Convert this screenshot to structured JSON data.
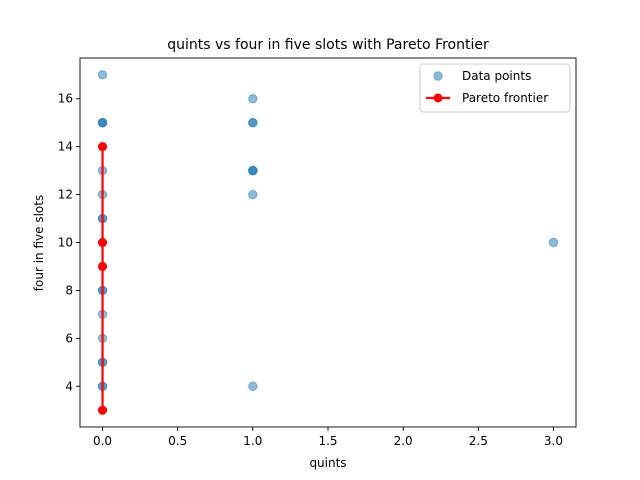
{
  "chart_data": {
    "type": "scatter",
    "title": "quints vs four in five slots with Pareto Frontier",
    "xlabel": "quints",
    "ylabel": "four in five slots",
    "xlim": [
      -0.15,
      3.15
    ],
    "ylim": [
      2.3,
      17.7
    ],
    "xticks": [
      0.0,
      0.5,
      1.0,
      1.5,
      2.0,
      2.5,
      3.0
    ],
    "xtick_labels": [
      "0.0",
      "0.5",
      "1.0",
      "1.5",
      "2.0",
      "2.5",
      "3.0"
    ],
    "yticks": [
      4,
      6,
      8,
      10,
      12,
      14,
      16
    ],
    "ytick_labels": [
      "4",
      "6",
      "8",
      "10",
      "12",
      "14",
      "16"
    ],
    "grid": false,
    "legend_position": "top-right",
    "series": [
      {
        "name": "Data points",
        "kind": "scatter",
        "color": "#1f77b4",
        "alpha": 0.5,
        "points": [
          [
            0,
            17
          ],
          [
            0,
            15
          ],
          [
            0,
            15
          ],
          [
            0,
            15
          ],
          [
            0,
            14
          ],
          [
            0,
            13
          ],
          [
            0,
            12
          ],
          [
            0,
            11
          ],
          [
            0,
            11
          ],
          [
            0,
            10
          ],
          [
            0,
            9
          ],
          [
            0,
            8
          ],
          [
            0,
            8
          ],
          [
            0,
            7
          ],
          [
            0,
            6
          ],
          [
            0,
            5
          ],
          [
            0,
            5
          ],
          [
            0,
            4
          ],
          [
            0,
            4
          ],
          [
            0,
            3
          ],
          [
            1,
            16
          ],
          [
            1,
            15
          ],
          [
            1,
            15
          ],
          [
            1,
            13
          ],
          [
            1,
            13
          ],
          [
            1,
            13
          ],
          [
            1,
            12
          ],
          [
            1,
            4
          ],
          [
            3,
            10
          ]
        ]
      },
      {
        "name": "Pareto frontier",
        "kind": "line-marker",
        "color": "#ff0000",
        "points": [
          [
            0,
            3
          ],
          [
            0,
            9
          ],
          [
            0,
            10
          ],
          [
            0,
            14
          ]
        ]
      }
    ]
  }
}
